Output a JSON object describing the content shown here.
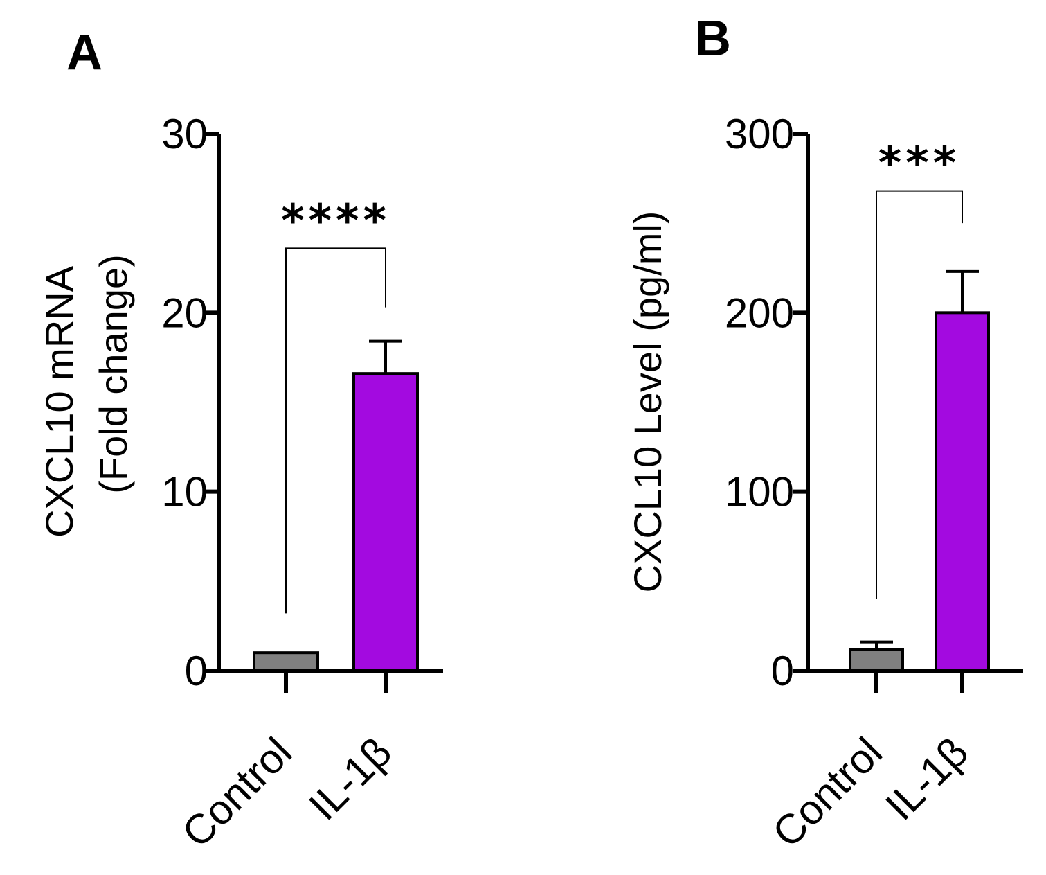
{
  "colors": {
    "control": "#808080",
    "treatment": "#a30ae0",
    "axis": "#000000"
  },
  "chart_data": [
    {
      "type": "bar",
      "panel": "A",
      "categories": [
        "Control",
        "IL-1β"
      ],
      "values": [
        1,
        16.6
      ],
      "errors": [
        0,
        1.8
      ],
      "ylabel_line1": "CXCL10 mRNA",
      "ylabel_line2": "(Fold change)",
      "ylim": [
        0,
        30
      ],
      "yticks": [
        0,
        10,
        20,
        30
      ],
      "significance": {
        "label": "****",
        "bracket_level": 23.6,
        "left_end": 3.2,
        "right_end": 20.3
      }
    },
    {
      "type": "bar",
      "panel": "B",
      "categories": [
        "Control",
        "IL-1β"
      ],
      "values": [
        12,
        200
      ],
      "errors": [
        4,
        23
      ],
      "ylabel_line1": "CXCL10 Level (pg/ml)",
      "ylabel_line2": "",
      "ylim": [
        0,
        300
      ],
      "yticks": [
        0,
        100,
        200,
        300
      ],
      "significance": {
        "label": "***",
        "bracket_level": 268,
        "left_end": 40,
        "right_end": 250
      }
    }
  ]
}
